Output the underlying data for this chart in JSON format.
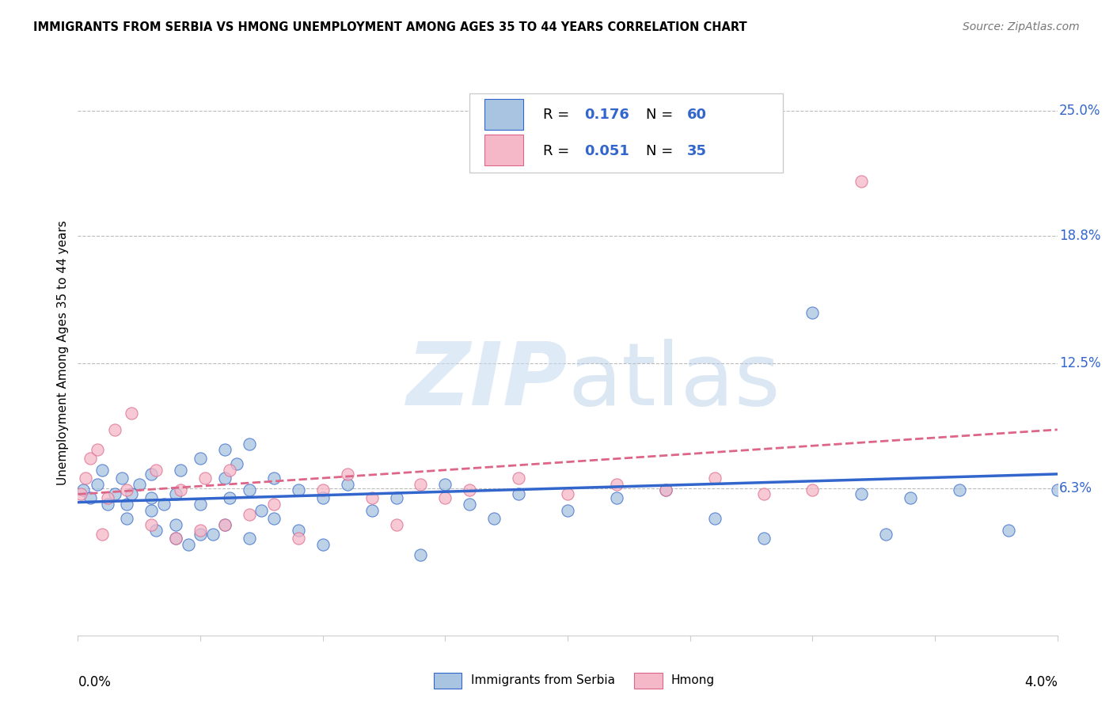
{
  "title": "IMMIGRANTS FROM SERBIA VS HMONG UNEMPLOYMENT AMONG AGES 35 TO 44 YEARS CORRELATION CHART",
  "source": "Source: ZipAtlas.com",
  "ylabel": "Unemployment Among Ages 35 to 44 years",
  "ytick_labels": [
    "25.0%",
    "18.8%",
    "12.5%",
    "6.3%"
  ],
  "ytick_values": [
    0.25,
    0.188,
    0.125,
    0.063
  ],
  "xlim": [
    0.0,
    0.04
  ],
  "ylim": [
    -0.01,
    0.27
  ],
  "color_serbia": "#a8c4e0",
  "color_hmong": "#f4b8c8",
  "color_serbia_line": "#3366cc",
  "color_hmong_line": "#dd6688",
  "serbia_scatter_x": [
    0.0002,
    0.0005,
    0.0008,
    0.001,
    0.0012,
    0.0015,
    0.0018,
    0.002,
    0.002,
    0.0022,
    0.0025,
    0.003,
    0.003,
    0.003,
    0.0032,
    0.0035,
    0.004,
    0.004,
    0.004,
    0.0042,
    0.0045,
    0.005,
    0.005,
    0.005,
    0.0055,
    0.006,
    0.006,
    0.006,
    0.0062,
    0.0065,
    0.007,
    0.007,
    0.007,
    0.0075,
    0.008,
    0.008,
    0.009,
    0.009,
    0.01,
    0.01,
    0.011,
    0.012,
    0.013,
    0.014,
    0.015,
    0.016,
    0.017,
    0.018,
    0.02,
    0.022,
    0.024,
    0.026,
    0.028,
    0.03,
    0.032,
    0.033,
    0.034,
    0.036,
    0.038,
    0.04
  ],
  "serbia_scatter_y": [
    0.062,
    0.058,
    0.065,
    0.072,
    0.055,
    0.06,
    0.068,
    0.048,
    0.055,
    0.06,
    0.065,
    0.052,
    0.058,
    0.07,
    0.042,
    0.055,
    0.038,
    0.045,
    0.06,
    0.072,
    0.035,
    0.04,
    0.055,
    0.078,
    0.04,
    0.068,
    0.082,
    0.045,
    0.058,
    0.075,
    0.038,
    0.062,
    0.085,
    0.052,
    0.048,
    0.068,
    0.042,
    0.062,
    0.035,
    0.058,
    0.065,
    0.052,
    0.058,
    0.03,
    0.065,
    0.055,
    0.048,
    0.06,
    0.052,
    0.058,
    0.062,
    0.048,
    0.038,
    0.15,
    0.06,
    0.04,
    0.058,
    0.062,
    0.042,
    0.062
  ],
  "hmong_scatter_x": [
    0.0001,
    0.0003,
    0.0005,
    0.0008,
    0.001,
    0.0012,
    0.0015,
    0.002,
    0.0022,
    0.003,
    0.0032,
    0.004,
    0.0042,
    0.005,
    0.0052,
    0.006,
    0.0062,
    0.007,
    0.008,
    0.009,
    0.01,
    0.011,
    0.012,
    0.013,
    0.014,
    0.015,
    0.016,
    0.018,
    0.02,
    0.022,
    0.024,
    0.026,
    0.028,
    0.03,
    0.032
  ],
  "hmong_scatter_y": [
    0.06,
    0.068,
    0.078,
    0.082,
    0.04,
    0.058,
    0.092,
    0.062,
    0.1,
    0.045,
    0.072,
    0.038,
    0.062,
    0.042,
    0.068,
    0.045,
    0.072,
    0.05,
    0.055,
    0.038,
    0.062,
    0.07,
    0.058,
    0.045,
    0.065,
    0.058,
    0.062,
    0.068,
    0.06,
    0.065,
    0.062,
    0.068,
    0.06,
    0.062,
    0.215
  ],
  "serbia_trend_x": [
    0.0,
    0.04
  ],
  "serbia_trend_y": [
    0.056,
    0.07
  ],
  "hmong_trend_x": [
    0.0,
    0.04
  ],
  "hmong_trend_y": [
    0.06,
    0.092
  ]
}
